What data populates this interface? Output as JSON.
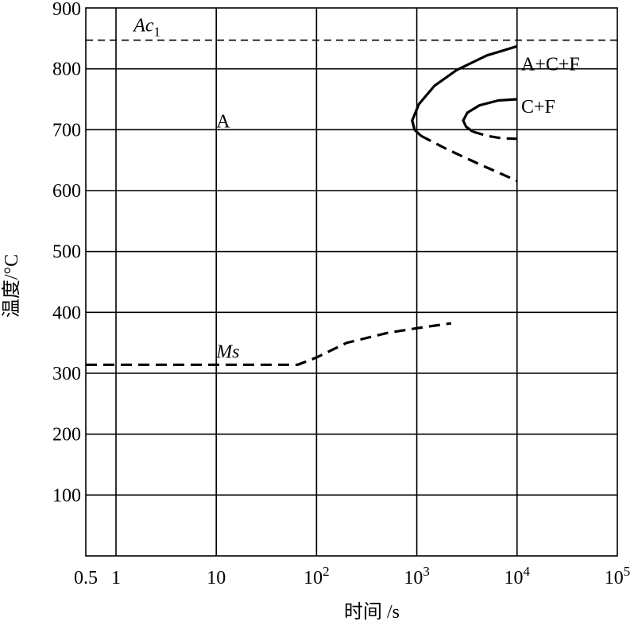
{
  "chart_data": {
    "type": "line",
    "title": "",
    "xlabel": "时间 /s",
    "ylabel": "温度/°C",
    "xscale": "log",
    "xlim": [
      0.5,
      100000
    ],
    "ylim": [
      0,
      900
    ],
    "grid": true,
    "x_ticks": [
      {
        "value": 0.5,
        "label": "0.5"
      },
      {
        "value": 1,
        "label": "1"
      },
      {
        "value": 10,
        "label": "10"
      },
      {
        "value": 100,
        "base": "10",
        "exp": "2"
      },
      {
        "value": 1000,
        "base": "10",
        "exp": "3"
      },
      {
        "value": 10000,
        "base": "10",
        "exp": "4"
      },
      {
        "value": 100000,
        "base": "10",
        "exp": "5"
      }
    ],
    "y_ticks": [
      {
        "value": 100,
        "label": "100"
      },
      {
        "value": 200,
        "label": "200"
      },
      {
        "value": 300,
        "label": "300"
      },
      {
        "value": 400,
        "label": "400"
      },
      {
        "value": 500,
        "label": "500"
      },
      {
        "value": 600,
        "label": "600"
      },
      {
        "value": 700,
        "label": "700"
      },
      {
        "value": 800,
        "label": "800"
      },
      {
        "value": 900,
        "label": "900"
      }
    ],
    "series": [
      {
        "style": "dashed-thin",
        "points": [
          [
            0.5,
            847
          ],
          [
            100000,
            847
          ]
        ]
      },
      {
        "style": "solid",
        "points": [
          [
            10000,
            837
          ],
          [
            5000,
            822
          ],
          [
            2500,
            798
          ],
          [
            1500,
            772
          ],
          [
            1050,
            742
          ],
          [
            900,
            715
          ],
          [
            950,
            700
          ],
          [
            1100,
            690
          ]
        ]
      },
      {
        "style": "dashed",
        "points": [
          [
            1100,
            690
          ],
          [
            2000,
            668
          ],
          [
            4000,
            645
          ],
          [
            10000,
            616
          ]
        ]
      },
      {
        "style": "solid",
        "points": [
          [
            10000,
            750
          ],
          [
            6500,
            748
          ],
          [
            4200,
            740
          ],
          [
            3200,
            728
          ],
          [
            2900,
            715
          ],
          [
            3100,
            705
          ],
          [
            3600,
            697
          ]
        ]
      },
      {
        "style": "dashed",
        "points": [
          [
            3600,
            697
          ],
          [
            5000,
            690
          ],
          [
            7000,
            686
          ],
          [
            10000,
            685
          ]
        ]
      },
      {
        "style": "dashed",
        "points": [
          [
            0.5,
            314
          ],
          [
            65,
            314
          ],
          [
            100,
            326
          ],
          [
            200,
            350
          ],
          [
            500,
            366
          ],
          [
            1000,
            374
          ],
          [
            2200,
            382
          ]
        ]
      }
    ],
    "annotations": [
      {
        "text": "Ac",
        "sub": "1",
        "x": 1.5,
        "y": 872,
        "italic": true
      },
      {
        "text": "A+C+F",
        "x": 11000,
        "y": 808
      },
      {
        "text": "C+F",
        "x": 11000,
        "y": 738
      },
      {
        "text": "A",
        "x": 10,
        "y": 714
      },
      {
        "text": "Ms",
        "x": 10,
        "y": 336,
        "italic": true
      }
    ]
  }
}
